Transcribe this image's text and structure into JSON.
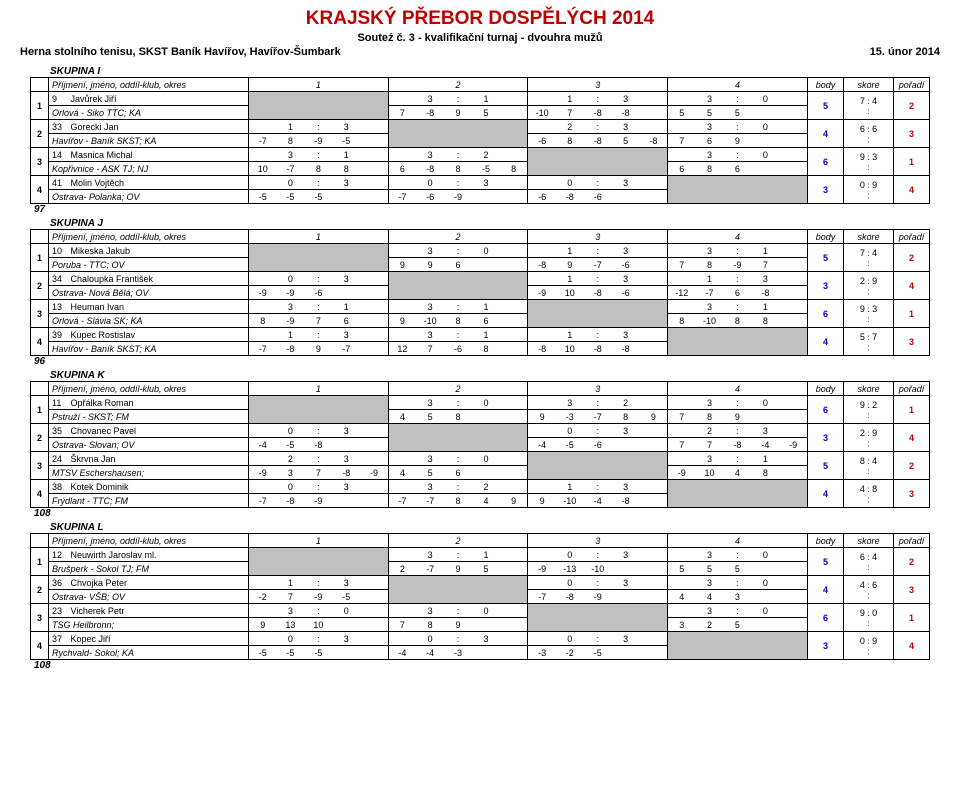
{
  "header": {
    "title": "KRAJSKÝ PŘEBOR DOSPĚLÝCH 2014",
    "subtitle": "Souteź č. 3 - kvalifikační turnaj - dvouhra mužů",
    "venue": "Herna stolního tenisu, SKST Baník Havířov, Havířov-Šumbark",
    "date": "15. únor 2014"
  },
  "hdr": {
    "name": "Příjmení, jméno, oddíl-klub, okres",
    "body": "body",
    "score": "skore",
    "rank": "pořadí"
  },
  "groups": [
    {
      "label": "SKUPINA I",
      "total": "97",
      "rows": [
        {
          "n": "1",
          "num": "9",
          "p": "Javůrek Jiří",
          "c": "Orlová - Siko TTC; KA",
          "cells": [
            null,
            {
              "t": "3 : 1",
              "s": [
                "7",
                "-8",
                "9",
                "5"
              ]
            },
            {
              "t": "1 : 3",
              "s": [
                "-10",
                "7",
                "-8",
                "-8"
              ]
            },
            {
              "t": "3 : 0",
              "s": [
                "5",
                "5",
                "5",
                ""
              ]
            }
          ],
          "body": "5",
          "sc": "7 : 4",
          "rk": "2"
        },
        {
          "n": "2",
          "num": "33",
          "p": "Gorecki Jan",
          "c": "Havířov - Baník SKST; KA",
          "cells": [
            {
              "t": "1 : 3",
              "s": [
                "-7",
                "8",
                "-9",
                "-5"
              ]
            },
            null,
            {
              "t": "2 : 3",
              "s": [
                "-6",
                "8",
                "-8",
                "5",
                "-8"
              ]
            },
            {
              "t": "3 : 0",
              "s": [
                "7",
                "6",
                "9",
                ""
              ]
            }
          ],
          "body": "4",
          "sc": "6 : 6",
          "rk": "3"
        },
        {
          "n": "3",
          "num": "14",
          "p": "Masnica Michal",
          "c": "Kopřivnice - ASK TJ; NJ",
          "cells": [
            {
              "t": "3 : 1",
              "s": [
                "10",
                "-7",
                "8",
                "8"
              ]
            },
            {
              "t": "3 : 2",
              "s": [
                "6",
                "-8",
                "8",
                "-5",
                "8"
              ]
            },
            null,
            {
              "t": "3 : 0",
              "s": [
                "6",
                "8",
                "6",
                ""
              ]
            }
          ],
          "body": "6",
          "sc": "9 : 3",
          "rk": "1"
        },
        {
          "n": "4",
          "num": "41",
          "p": "Molin Vojtěch",
          "c": "Ostrava- Polanka; OV",
          "cells": [
            {
              "t": "0 : 3",
              "s": [
                "-5",
                "-5",
                "-5",
                ""
              ]
            },
            {
              "t": "0 : 3",
              "s": [
                "-7",
                "-6",
                "-9",
                ""
              ]
            },
            {
              "t": "0 : 3",
              "s": [
                "-6",
                "-8",
                "-6",
                ""
              ]
            },
            null
          ],
          "body": "3",
          "sc": "0 : 9",
          "rk": "4"
        }
      ]
    },
    {
      "label": "SKUPINA J",
      "total": "96",
      "rows": [
        {
          "n": "1",
          "num": "10",
          "p": "Mikeska Jakub",
          "c": "Poruba - TTC; OV",
          "cells": [
            null,
            {
              "t": "3 : 0",
              "s": [
                "9",
                "9",
                "6",
                ""
              ]
            },
            {
              "t": "1 : 3",
              "s": [
                "-8",
                "9",
                "-7",
                "-6"
              ]
            },
            {
              "t": "3 : 1",
              "s": [
                "7",
                "8",
                "-9",
                "7"
              ]
            }
          ],
          "body": "5",
          "sc": "7 : 4",
          "rk": "2"
        },
        {
          "n": "2",
          "num": "34",
          "p": "Chaloupka František",
          "c": "Ostrava- Nová Bělá; OV",
          "cells": [
            {
              "t": "0 : 3",
              "s": [
                "-9",
                "-9",
                "-6",
                ""
              ]
            },
            null,
            {
              "t": "1 : 3",
              "s": [
                "-9",
                "10",
                "-8",
                "-6"
              ]
            },
            {
              "t": "1 : 3",
              "s": [
                "-12",
                "-7",
                "6",
                "-8"
              ]
            }
          ],
          "body": "3",
          "sc": "2 : 9",
          "rk": "4"
        },
        {
          "n": "3",
          "num": "13",
          "p": "Heuman Ivan",
          "c": "Orlová - Slávia SK; KA",
          "cells": [
            {
              "t": "3 : 1",
              "s": [
                "8",
                "-9",
                "7",
                "6"
              ]
            },
            {
              "t": "3 : 1",
              "s": [
                "9",
                "-10",
                "8",
                "6"
              ]
            },
            null,
            {
              "t": "3 : 1",
              "s": [
                "8",
                "-10",
                "8",
                "8"
              ]
            }
          ],
          "body": "6",
          "sc": "9 : 3",
          "rk": "1"
        },
        {
          "n": "4",
          "num": "39",
          "p": "Kupec Rostislav",
          "c": "Havířov - Baník SKST; KA",
          "cells": [
            {
              "t": "1 : 3",
              "s": [
                "-7",
                "-8",
                "9",
                "-7"
              ]
            },
            {
              "t": "3 : 1",
              "s": [
                "12",
                "7",
                "-6",
                "8"
              ]
            },
            {
              "t": "1 : 3",
              "s": [
                "-8",
                "10",
                "-8",
                "-8"
              ]
            },
            null
          ],
          "body": "4",
          "sc": "5 : 7",
          "rk": "3"
        }
      ]
    },
    {
      "label": "SKUPINA K",
      "total": "108",
      "rows": [
        {
          "n": "1",
          "num": "11",
          "p": "Opřálka Roman",
          "c": "Pstruží - SKST; FM",
          "cells": [
            null,
            {
              "t": "3 : 0",
              "s": [
                "4",
                "5",
                "8",
                ""
              ]
            },
            {
              "t": "3 : 2",
              "s": [
                "9",
                "-3",
                "-7",
                "8",
                "9"
              ]
            },
            {
              "t": "3 : 0",
              "s": [
                "7",
                "8",
                "9",
                ""
              ]
            }
          ],
          "body": "6",
          "sc": "9 : 2",
          "rk": "1"
        },
        {
          "n": "2",
          "num": "35",
          "p": "Chovanec Pavel",
          "c": "Ostrava- Slovan; OV",
          "cells": [
            {
              "t": "0 : 3",
              "s": [
                "-4",
                "-5",
                "-8",
                ""
              ]
            },
            null,
            {
              "t": "0 : 3",
              "s": [
                "-4",
                "-5",
                "-6",
                ""
              ]
            },
            {
              "t": "2 : 3",
              "s": [
                "7",
                "7",
                "-8",
                "-4",
                "-9"
              ]
            }
          ],
          "body": "3",
          "sc": "2 : 9",
          "rk": "4"
        },
        {
          "n": "3",
          "num": "24",
          "p": "Škrvna Jan",
          "c": "MTSV Eschershausen;",
          "cells": [
            {
              "t": "2 : 3",
              "s": [
                "-9",
                "3",
                "7",
                "-8",
                "-9"
              ]
            },
            {
              "t": "3 : 0",
              "s": [
                "4",
                "5",
                "6",
                ""
              ]
            },
            null,
            {
              "t": "3 : 1",
              "s": [
                "-9",
                "10",
                "4",
                "8"
              ]
            }
          ],
          "body": "5",
          "sc": "8 : 4",
          "rk": "2"
        },
        {
          "n": "4",
          "num": "38",
          "p": "Kotek Dominik",
          "c": "Frýdlant - TTC; FM",
          "cells": [
            {
              "t": "0 : 3",
              "s": [
                "-7",
                "-8",
                "-9",
                ""
              ]
            },
            {
              "t": "3 : 2",
              "s": [
                "-7",
                "-7",
                "8",
                "4",
                "9"
              ]
            },
            {
              "t": "1 : 3",
              "s": [
                "9",
                "-10",
                "-4",
                "-8"
              ]
            },
            null
          ],
          "body": "4",
          "sc": "4 : 8",
          "rk": "3"
        }
      ]
    },
    {
      "label": "SKUPINA L",
      "total": "108",
      "rows": [
        {
          "n": "1",
          "num": "12",
          "p": "Neuwirth Jaroslav ml.",
          "c": "Brušperk - Sokol TJ; FM",
          "cells": [
            null,
            {
              "t": "3 : 1",
              "s": [
                "2",
                "-7",
                "9",
                "5"
              ]
            },
            {
              "t": "0 : 3",
              "s": [
                "-9",
                "-13",
                "-10",
                ""
              ]
            },
            {
              "t": "3 : 0",
              "s": [
                "5",
                "5",
                "5",
                ""
              ]
            }
          ],
          "body": "5",
          "sc": "6 : 4",
          "rk": "2"
        },
        {
          "n": "2",
          "num": "36",
          "p": "Chvojka Peter",
          "c": "Ostrava- VŠB; OV",
          "cells": [
            {
              "t": "1 : 3",
              "s": [
                "-2",
                "7",
                "-9",
                "-5"
              ]
            },
            null,
            {
              "t": "0 : 3",
              "s": [
                "-7",
                "-8",
                "-9",
                ""
              ]
            },
            {
              "t": "3 : 0",
              "s": [
                "4",
                "4",
                "3",
                ""
              ]
            }
          ],
          "body": "4",
          "sc": "4 : 6",
          "rk": "3"
        },
        {
          "n": "3",
          "num": "23",
          "p": "Vicherek Petr",
          "c": "TSG Heilbronn;",
          "cells": [
            {
              "t": "3 : 0",
              "s": [
                "9",
                "13",
                "10",
                ""
              ]
            },
            {
              "t": "3 : 0",
              "s": [
                "7",
                "8",
                "9",
                ""
              ]
            },
            null,
            {
              "t": "3 : 0",
              "s": [
                "3",
                "2",
                "5",
                ""
              ]
            }
          ],
          "body": "6",
          "sc": "9 : 0",
          "rk": "1"
        },
        {
          "n": "4",
          "num": "37",
          "p": "Kopec Jiří",
          "c": "Rychvald- Sokol; KA",
          "cells": [
            {
              "t": "0 : 3",
              "s": [
                "-5",
                "-5",
                "-5",
                ""
              ]
            },
            {
              "t": "0 : 3",
              "s": [
                "-4",
                "-4",
                "-3",
                ""
              ]
            },
            {
              "t": "0 : 3",
              "s": [
                "-3",
                "-2",
                "-5",
                ""
              ]
            },
            null
          ],
          "body": "3",
          "sc": "0 : 9",
          "rk": "4"
        }
      ]
    }
  ]
}
